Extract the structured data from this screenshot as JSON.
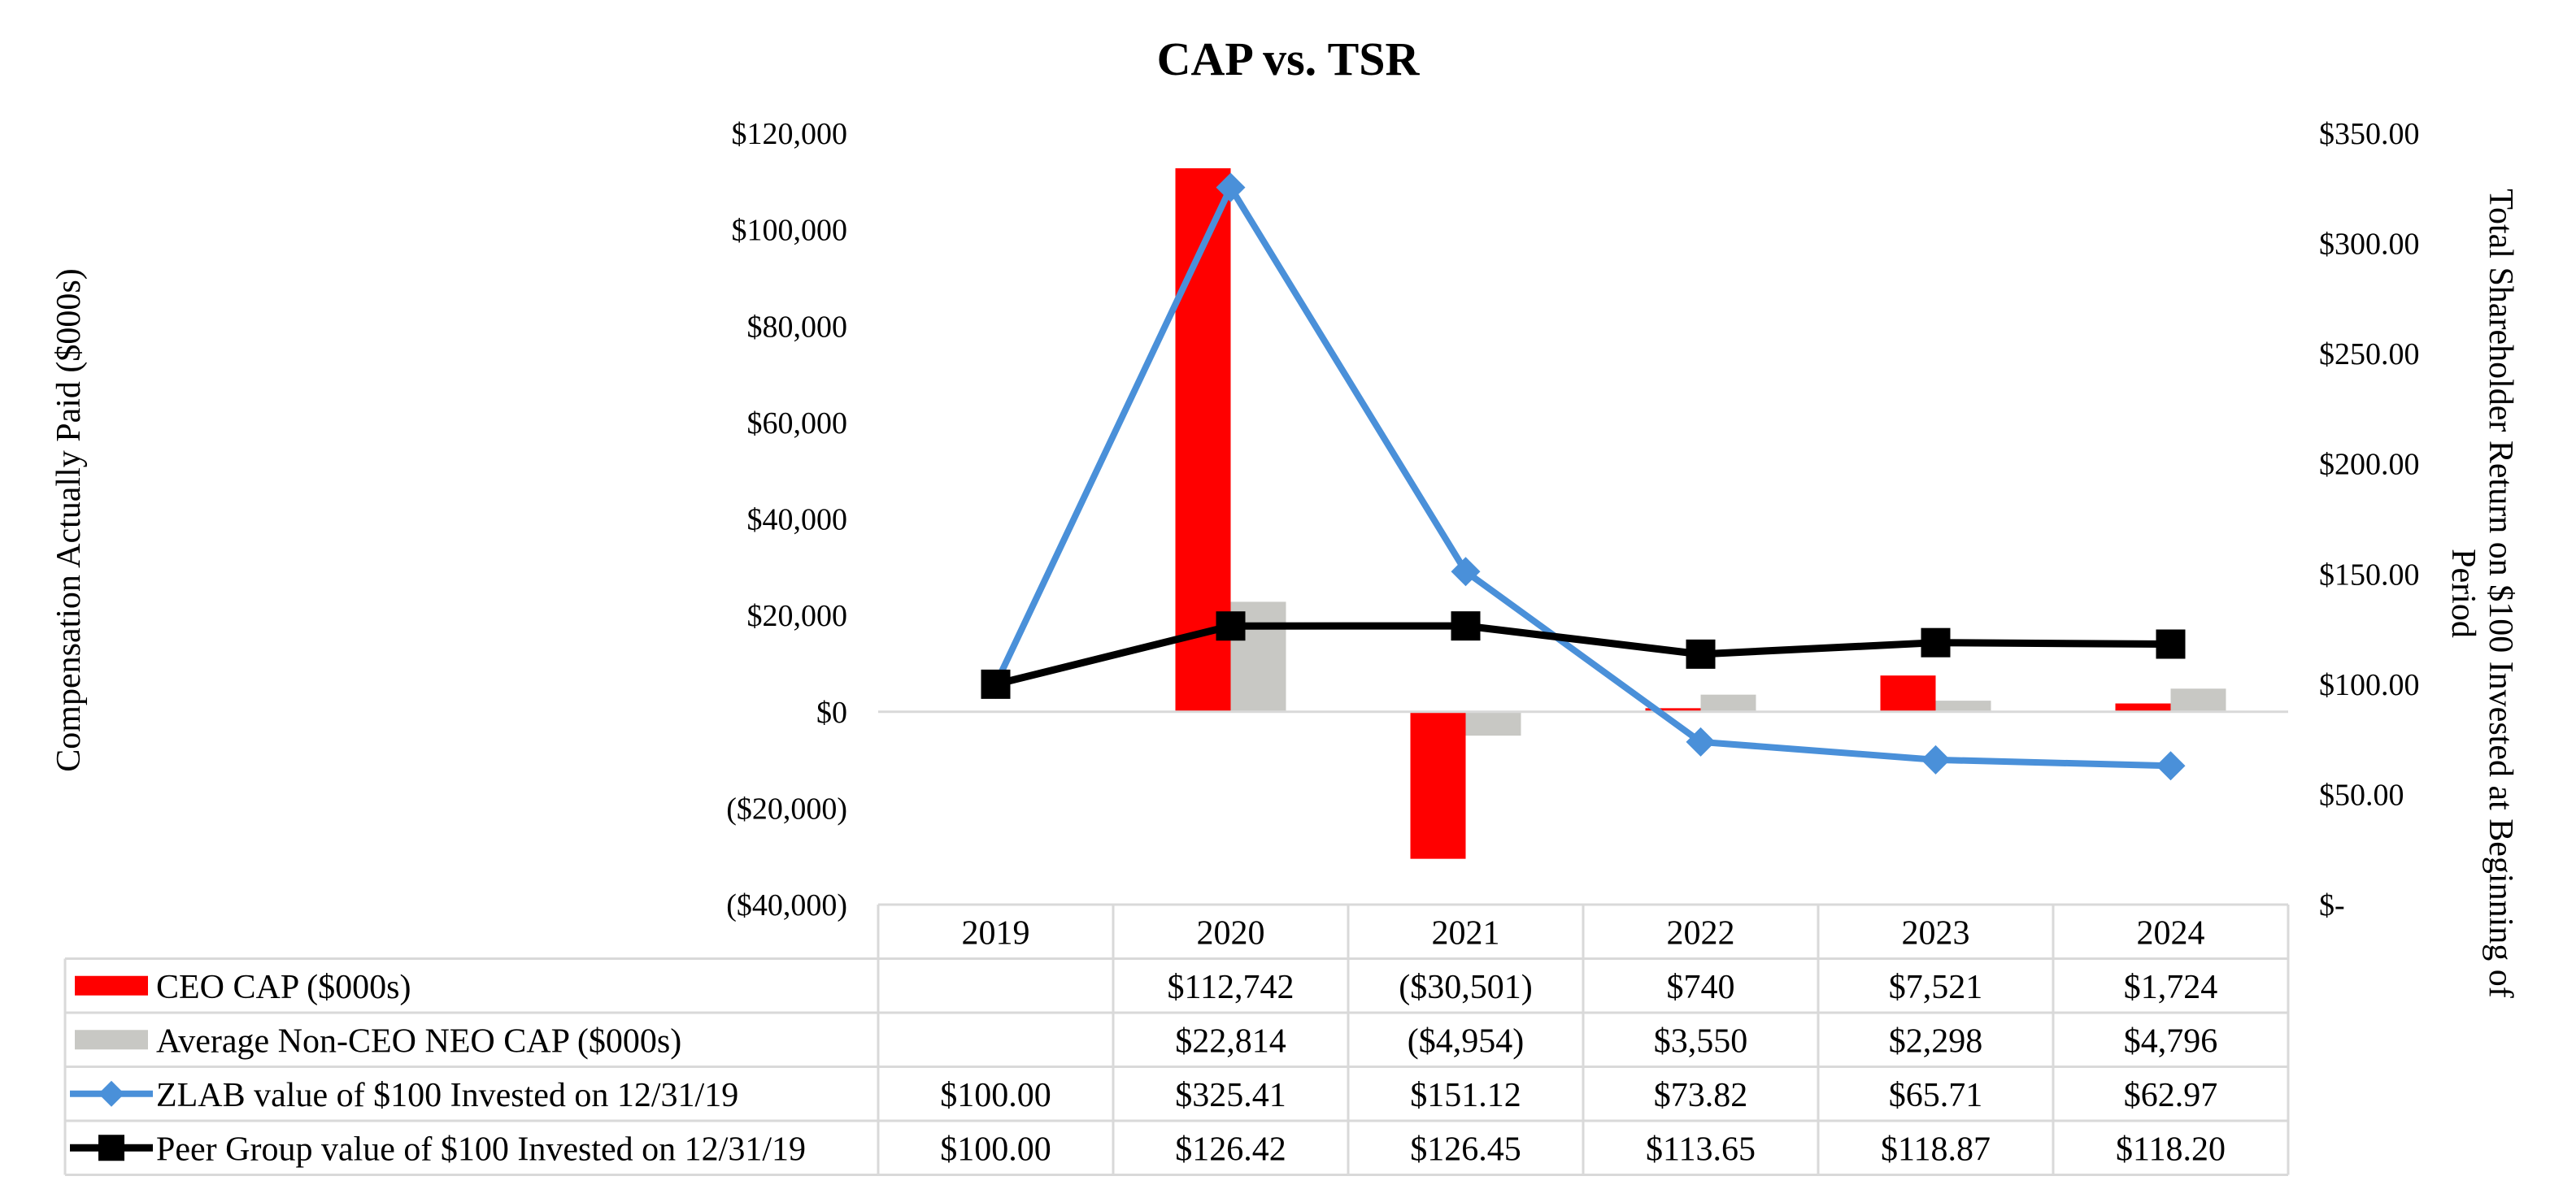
{
  "chart_data": {
    "type": "bar",
    "title": "CAP vs. TSR",
    "categories": [
      "2019",
      "2020",
      "2021",
      "2022",
      "2023",
      "2024"
    ],
    "ylabel": "Compensation Actually Paid ($000s)",
    "y2label_line1": "Total Shareholder Return on $100 Invested at Beginning of",
    "y2label_line2": "Period",
    "ylim": [
      -40000,
      120000
    ],
    "y2lim": [
      0,
      350
    ],
    "y_ticks": [
      {
        "value": 120000,
        "label": "$120,000"
      },
      {
        "value": 100000,
        "label": "$100,000"
      },
      {
        "value": 80000,
        "label": "$80,000"
      },
      {
        "value": 60000,
        "label": "$60,000"
      },
      {
        "value": 40000,
        "label": "$40,000"
      },
      {
        "value": 20000,
        "label": "$20,000"
      },
      {
        "value": 0,
        "label": "$0"
      },
      {
        "value": -20000,
        "label": "($20,000)"
      },
      {
        "value": -40000,
        "label": "($40,000)"
      }
    ],
    "y2_ticks": [
      {
        "value": 350,
        "label": "$350.00"
      },
      {
        "value": 300,
        "label": "$300.00"
      },
      {
        "value": 250,
        "label": "$250.00"
      },
      {
        "value": 200,
        "label": "$200.00"
      },
      {
        "value": 150,
        "label": "$150.00"
      },
      {
        "value": 100,
        "label": "$100.00"
      },
      {
        "value": 50,
        "label": "$50.00"
      },
      {
        "value": 0,
        "label": "$-"
      }
    ],
    "series": [
      {
        "name": "CEO CAP ($000s)",
        "kind": "bar",
        "axis": "left",
        "color": "#ff0000",
        "values": [
          null,
          112742,
          -30501,
          740,
          7521,
          1724
        ],
        "labels": [
          "",
          "$112,742",
          "($30,501)",
          "$740",
          "$7,521",
          "$1,724"
        ]
      },
      {
        "name": "Average Non-CEO NEO CAP ($000s)",
        "kind": "bar",
        "axis": "left",
        "color": "#c8c8c4",
        "values": [
          null,
          22814,
          -4954,
          3550,
          2298,
          4796
        ],
        "labels": [
          "",
          "$22,814",
          "($4,954)",
          "$3,550",
          "$2,298",
          "$4,796"
        ]
      },
      {
        "name": "ZLAB value of $100 Invested on 12/31/19",
        "kind": "line",
        "axis": "right",
        "color": "#4a90d9",
        "marker": "diamond",
        "values": [
          100.0,
          325.41,
          151.12,
          73.82,
          65.71,
          62.97
        ],
        "labels": [
          "$100.00",
          "$325.41",
          "$151.12",
          "$73.82",
          "$65.71",
          "$62.97"
        ]
      },
      {
        "name": "Peer Group value of $100 Invested on 12/31/19",
        "kind": "line",
        "axis": "right",
        "color": "#000000",
        "marker": "square",
        "values": [
          100.0,
          126.42,
          126.45,
          113.65,
          118.87,
          118.2
        ],
        "labels": [
          "$100.00",
          "$126.42",
          "$126.45",
          "$113.65",
          "$118.87",
          "$118.20"
        ]
      }
    ]
  }
}
